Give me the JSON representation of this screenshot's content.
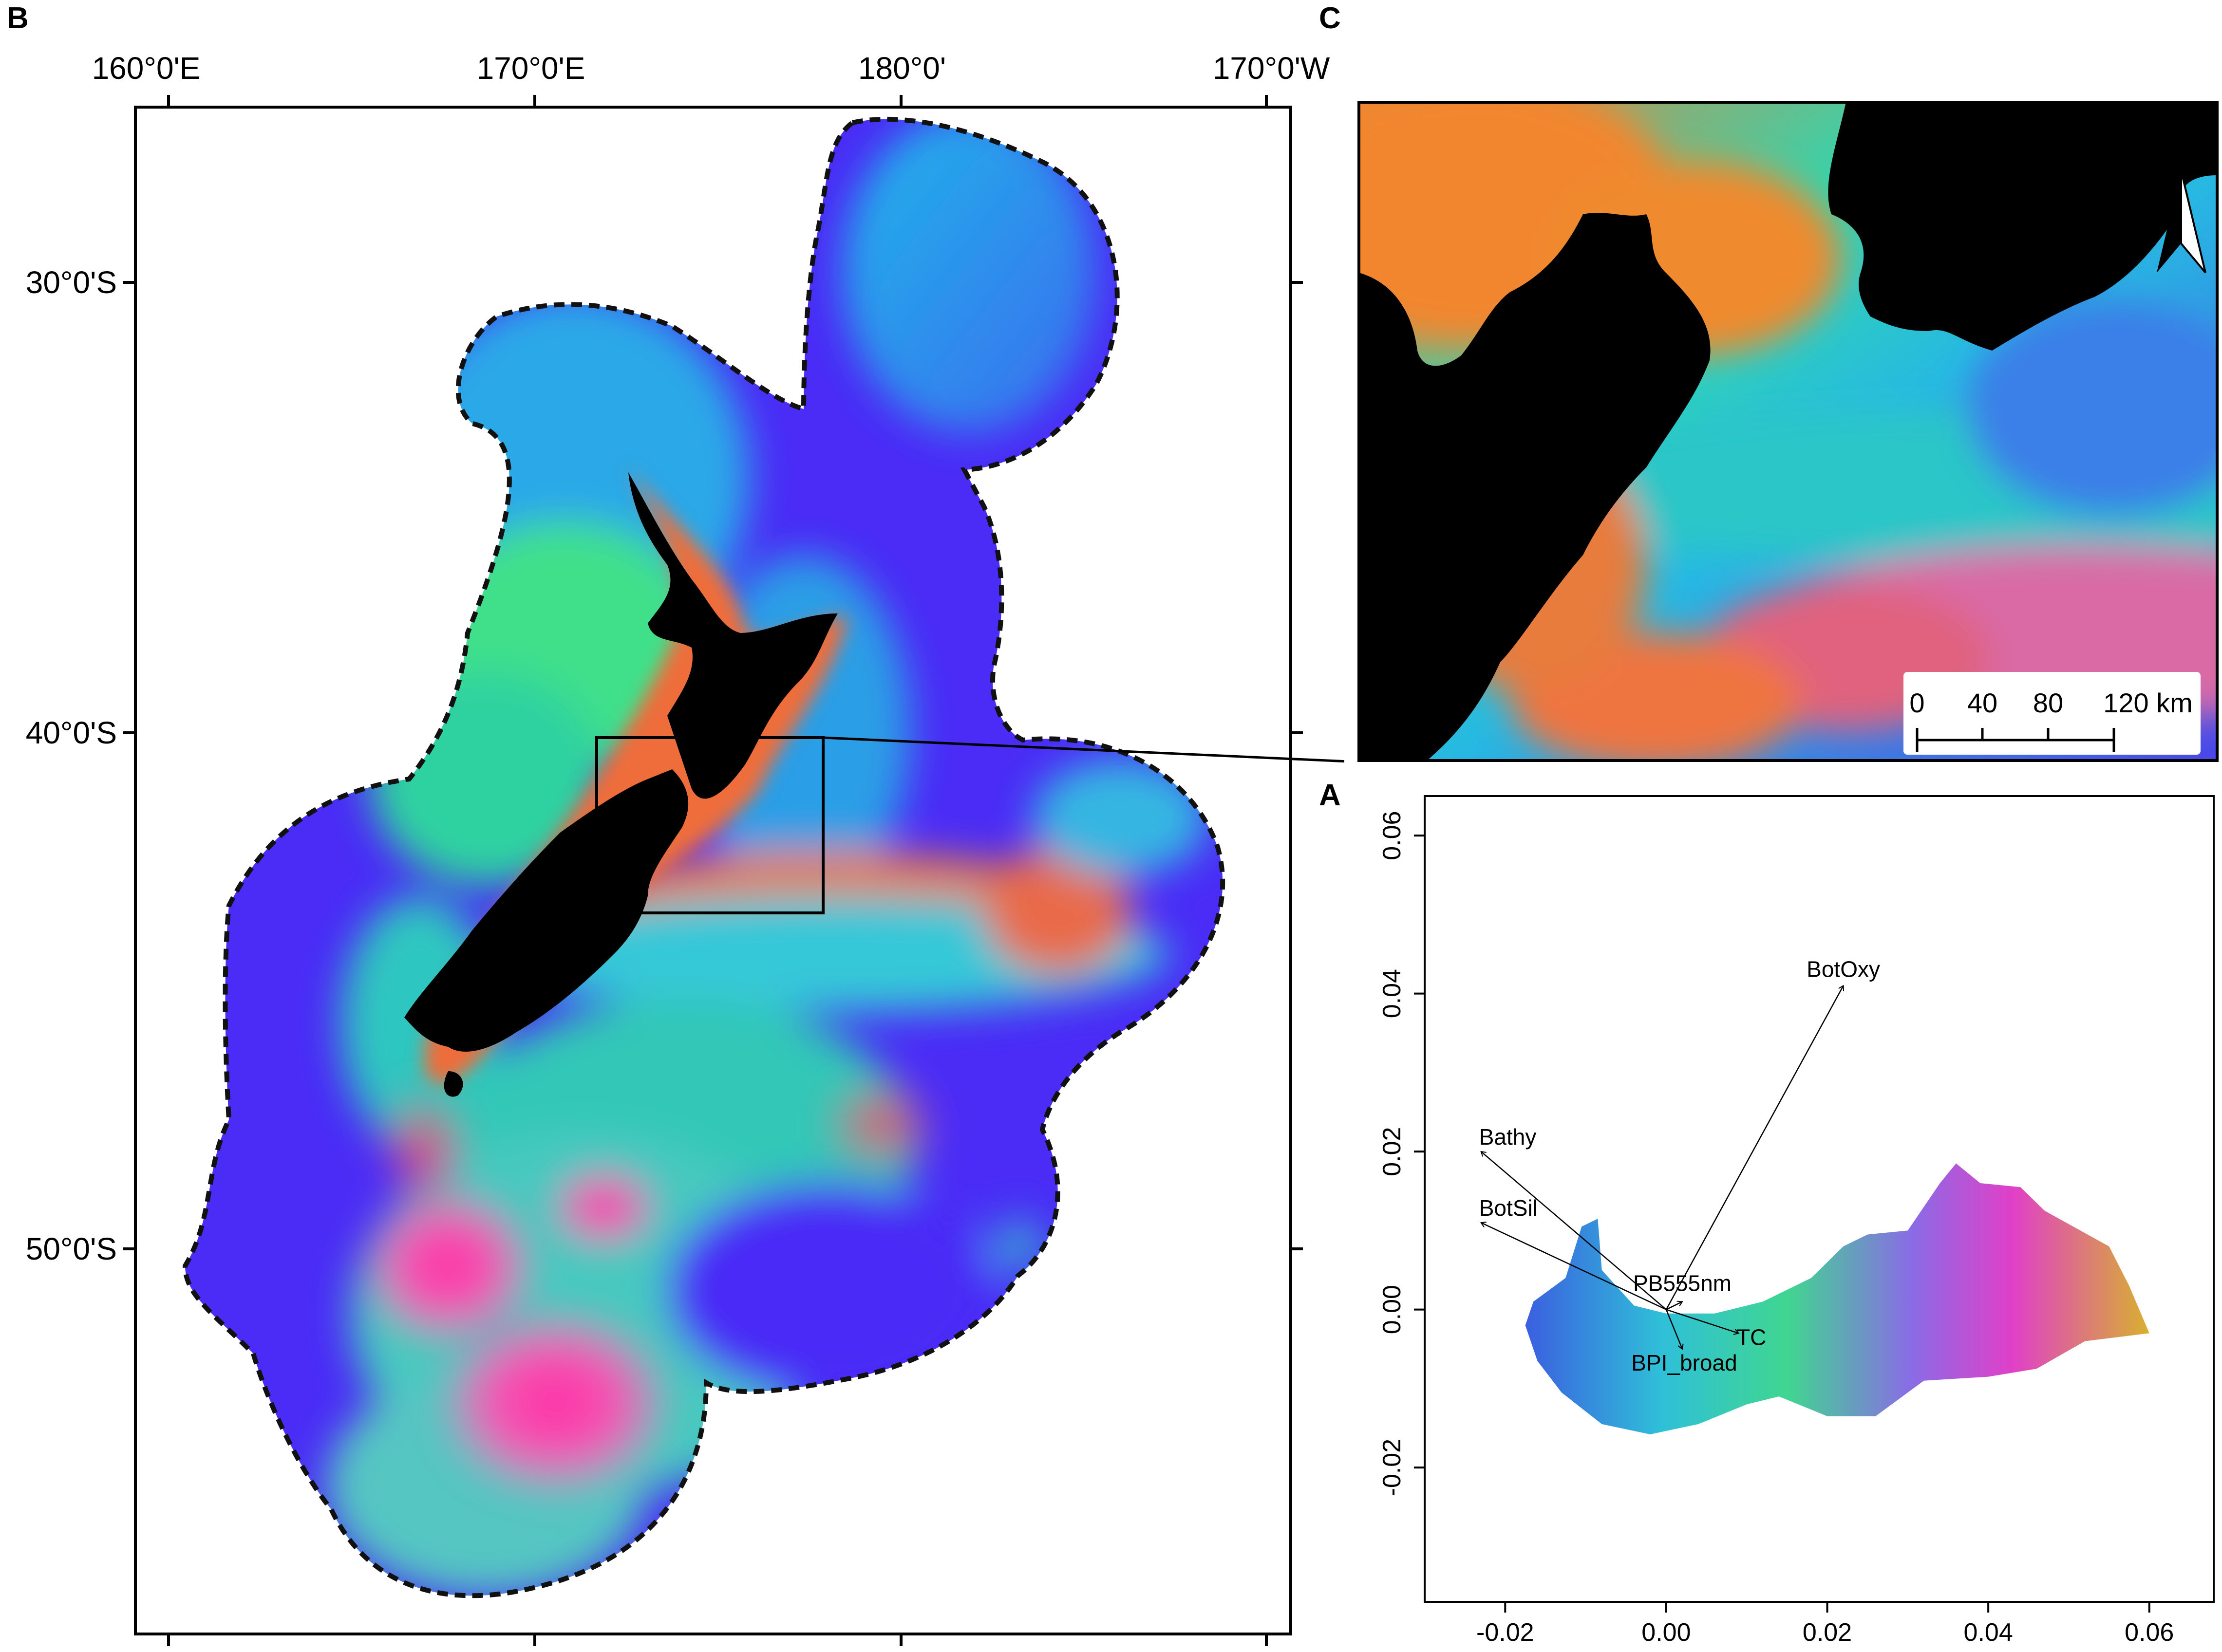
{
  "panels": {
    "b": {
      "letter": "B",
      "lon_ticks": [
        "160°0'E",
        "170°0'E",
        "180°0'",
        "170°0'W"
      ],
      "lat_ticks": [
        "30°0'S",
        "40°0'S",
        "50°0'S"
      ]
    },
    "c": {
      "letter": "C",
      "north_label": "N",
      "scale_labels": [
        "0",
        "40",
        "80",
        "120 km"
      ]
    },
    "a": {
      "letter": "A"
    }
  },
  "chart_data": {
    "type": "scatter",
    "title": "",
    "xlabel": "",
    "ylabel": "",
    "xlim": [
      -0.03,
      0.068
    ],
    "ylim": [
      -0.037,
      0.065
    ],
    "x_ticks": [
      "-0.02",
      "0.00",
      "0.02",
      "0.04",
      "0.06"
    ],
    "y_ticks": [
      "-0.02",
      "0.00",
      "0.02",
      "0.04",
      "0.06"
    ],
    "vectors": [
      {
        "label": "BotOxy",
        "x": 0.022,
        "y": 0.041
      },
      {
        "label": "Bathy",
        "x": -0.023,
        "y": 0.02
      },
      {
        "label": "BotSil",
        "x": -0.023,
        "y": 0.011
      },
      {
        "label": "PB555nm",
        "x": 0.002,
        "y": 0.001
      },
      {
        "label": "TC",
        "x": 0.009,
        "y": -0.003
      },
      {
        "label": "BPI_broad",
        "x": 0.002,
        "y": -0.005
      }
    ]
  }
}
